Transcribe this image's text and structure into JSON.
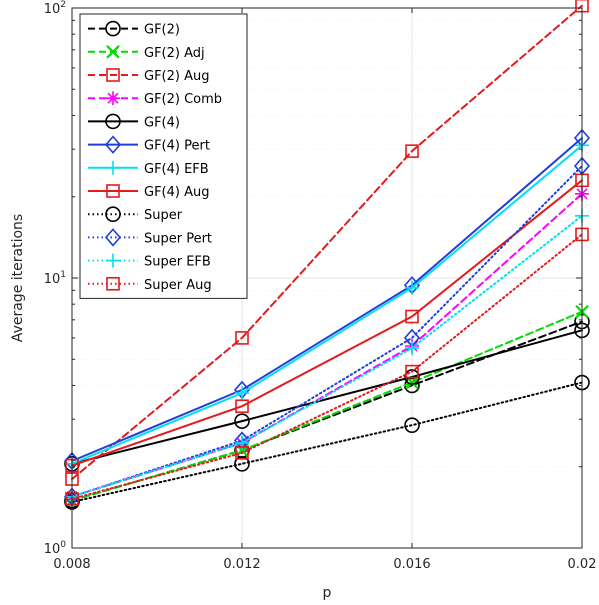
{
  "chart_data": {
    "type": "line",
    "title": "",
    "xlabel": "p",
    "ylabel": "Average iterations",
    "x": [
      0.008,
      0.012,
      0.016,
      0.02
    ],
    "xlim": [
      0.008,
      0.02
    ],
    "ylim": [
      1,
      100
    ],
    "yscale": "log",
    "grid": true,
    "legend_position": "top-left",
    "x_ticks": [
      "0.008",
      "0.012",
      "0.016",
      "0.02"
    ],
    "y_ticks": [
      {
        "value": 1,
        "base": "10",
        "exp": "0"
      },
      {
        "value": 10,
        "base": "10",
        "exp": "1"
      },
      {
        "value": 100,
        "base": "10",
        "exp": "2"
      }
    ],
    "series": [
      {
        "name": "GF(2)",
        "color": "#000000",
        "dash": "dashed",
        "marker": "circle",
        "values": [
          1.5,
          2.3,
          4.0,
          6.9
        ]
      },
      {
        "name": "GF(2) Adj",
        "color": "#00dd00",
        "dash": "dashed",
        "marker": "x",
        "values": [
          1.5,
          2.3,
          4.1,
          7.5
        ]
      },
      {
        "name": "GF(2) Aug",
        "color": "#e41a1c",
        "dash": "dashed",
        "marker": "square",
        "values": [
          1.8,
          6.0,
          29.5,
          102
        ]
      },
      {
        "name": "GF(2) Comb",
        "color": "#ff00ff",
        "dash": "dashed",
        "marker": "star",
        "values": [
          1.55,
          2.45,
          5.6,
          20.5
        ]
      },
      {
        "name": "GF(4)",
        "color": "#000000",
        "dash": "solid",
        "marker": "circle",
        "values": [
          2.05,
          2.95,
          4.3,
          6.4
        ]
      },
      {
        "name": "GF(4) Pert",
        "color": "#1f3fdc",
        "dash": "solid",
        "marker": "diamond",
        "values": [
          2.1,
          3.85,
          9.4,
          33.0
        ]
      },
      {
        "name": "GF(4) EFB",
        "color": "#00e0f0",
        "dash": "solid",
        "marker": "plus",
        "values": [
          2.05,
          3.75,
          9.2,
          31.0
        ]
      },
      {
        "name": "GF(4) Aug",
        "color": "#e41a1c",
        "dash": "solid",
        "marker": "square",
        "values": [
          2.02,
          3.35,
          7.2,
          23.0
        ]
      },
      {
        "name": "Super",
        "color": "#000000",
        "dash": "dotted",
        "marker": "circle",
        "values": [
          1.48,
          2.05,
          2.85,
          4.1
        ]
      },
      {
        "name": "Super Pert",
        "color": "#1f3fdc",
        "dash": "dotted",
        "marker": "diamond",
        "values": [
          1.55,
          2.5,
          6.0,
          26.0
        ]
      },
      {
        "name": "Super EFB",
        "color": "#00e0f0",
        "dash": "dotted",
        "marker": "plus",
        "values": [
          1.55,
          2.45,
          5.5,
          17.0
        ]
      },
      {
        "name": "Super Aug",
        "color": "#e41a1c",
        "dash": "dotted",
        "marker": "square",
        "values": [
          1.52,
          2.25,
          4.5,
          14.5
        ]
      }
    ]
  }
}
